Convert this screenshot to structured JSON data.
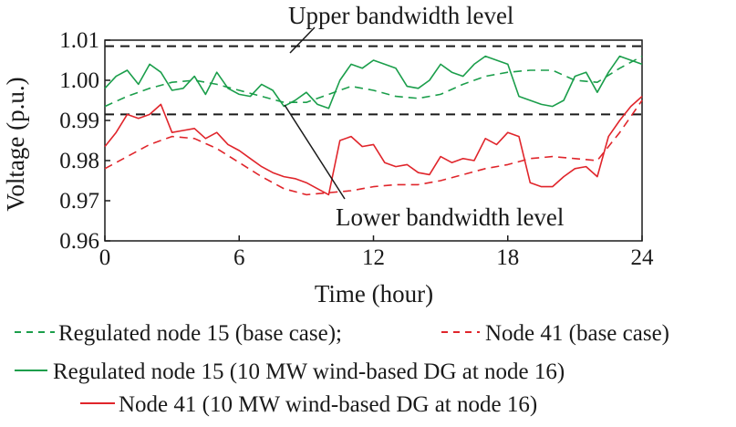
{
  "chart_data": {
    "type": "line",
    "xlabel": "Time (hour)",
    "ylabel": "Voltage (p.u.)",
    "xlim": [
      0,
      24
    ],
    "ylim": [
      0.96,
      1.01
    ],
    "xticks": [
      "0",
      "6",
      "12",
      "18",
      "24"
    ],
    "yticks": [
      "0.96",
      "0.97",
      "0.98",
      "0.99",
      "1.00",
      "1.01"
    ],
    "grid": false,
    "reference_lines": [
      {
        "label": "Upper bandwidth level",
        "y": 1.0085,
        "style": "dashed",
        "color": "#000000"
      },
      {
        "label": "Lower bandwidth level",
        "y": 0.9915,
        "style": "dashed",
        "color": "#000000"
      }
    ],
    "legend": {
      "line1_a": "Regulated node 15 (base case);",
      "line1_b": "Node 41 (base case)",
      "line2": "Regulated node 15 (10 MW wind-based DG at node 16)",
      "line3": "Node 41 (10 MW wind-based DG at node 16)"
    },
    "series": [
      {
        "name": "Regulated node 15 (base case)",
        "color": "#1b9e4b",
        "style": "dashed",
        "x": [
          0,
          1,
          2,
          3,
          4,
          5,
          6,
          7,
          8,
          9,
          10,
          11,
          12,
          13,
          14,
          15,
          16,
          17,
          18,
          19,
          20,
          21,
          22,
          23,
          24
        ],
        "values": [
          0.9935,
          0.996,
          0.998,
          0.9995,
          1.0,
          0.999,
          0.9975,
          0.996,
          0.9945,
          0.9945,
          0.9965,
          0.9985,
          0.9975,
          0.996,
          0.9955,
          0.9965,
          0.999,
          1.001,
          1.002,
          1.0025,
          1.0025,
          1.0,
          0.9995,
          1.003,
          1.006
        ]
      },
      {
        "name": "Node 41 (base case)",
        "color": "#e0252b",
        "style": "dashed",
        "x": [
          0,
          1,
          2,
          3,
          4,
          5,
          6,
          7,
          8,
          9,
          10,
          11,
          12,
          13,
          14,
          15,
          16,
          17,
          18,
          19,
          20,
          21,
          22,
          23,
          24
        ],
        "values": [
          0.978,
          0.981,
          0.984,
          0.986,
          0.9855,
          0.983,
          0.9795,
          0.976,
          0.973,
          0.9715,
          0.972,
          0.9725,
          0.9735,
          0.974,
          0.974,
          0.975,
          0.9765,
          0.978,
          0.979,
          0.9805,
          0.981,
          0.9805,
          0.98,
          0.987,
          0.995
        ]
      },
      {
        "name": "Regulated node 15 (10 MW wind-based DG at node 16)",
        "color": "#1b9e4b",
        "style": "solid",
        "x": [
          0,
          0.5,
          1,
          1.5,
          2,
          2.5,
          3,
          3.5,
          4,
          4.5,
          5,
          5.5,
          6,
          6.5,
          7,
          7.5,
          8,
          8.5,
          9,
          9.5,
          10,
          10.5,
          11,
          11.5,
          12,
          12.5,
          13,
          13.5,
          14,
          14.5,
          15,
          15.5,
          16,
          16.5,
          17,
          17.5,
          18,
          18.5,
          19,
          19.5,
          20,
          20.5,
          21,
          21.5,
          22,
          22.5,
          23,
          23.5,
          24
        ],
        "values": [
          0.998,
          1.001,
          1.0025,
          0.999,
          1.004,
          1.002,
          0.9975,
          0.998,
          1.001,
          0.9965,
          1.002,
          0.998,
          0.9965,
          0.996,
          0.999,
          0.9975,
          0.9935,
          0.995,
          0.997,
          0.994,
          0.993,
          1.0,
          1.004,
          1.003,
          1.005,
          1.004,
          1.003,
          0.9985,
          0.998,
          1.0,
          1.004,
          1.002,
          1.001,
          1.004,
          1.006,
          1.005,
          1.004,
          0.996,
          0.995,
          0.994,
          0.9935,
          0.995,
          1.001,
          1.002,
          0.997,
          1.002,
          1.006,
          1.005,
          1.004
        ]
      },
      {
        "name": "Node 41 (10 MW wind-based DG at node 16)",
        "color": "#e0252b",
        "style": "solid",
        "x": [
          0,
          0.5,
          1,
          1.5,
          2,
          2.5,
          3,
          3.5,
          4,
          4.5,
          5,
          5.5,
          6,
          6.5,
          7,
          7.5,
          8,
          8.5,
          9,
          9.5,
          10,
          10.5,
          11,
          11.5,
          12,
          12.5,
          13,
          13.5,
          14,
          14.5,
          15,
          15.5,
          16,
          16.5,
          17,
          17.5,
          18,
          18.5,
          19,
          19.5,
          20,
          20.5,
          21,
          21.5,
          22,
          22.5,
          23,
          23.5,
          24
        ],
        "values": [
          0.9835,
          0.987,
          0.9915,
          0.9905,
          0.9915,
          0.994,
          0.987,
          0.9875,
          0.988,
          0.9855,
          0.987,
          0.984,
          0.9825,
          0.9805,
          0.9785,
          0.977,
          0.976,
          0.9755,
          0.9745,
          0.973,
          0.9715,
          0.985,
          0.986,
          0.9835,
          0.984,
          0.9795,
          0.9785,
          0.979,
          0.977,
          0.9765,
          0.981,
          0.9795,
          0.9805,
          0.98,
          0.9855,
          0.984,
          0.987,
          0.986,
          0.9745,
          0.9735,
          0.9735,
          0.976,
          0.978,
          0.9785,
          0.976,
          0.986,
          0.99,
          0.9935,
          0.996
        ]
      }
    ]
  }
}
